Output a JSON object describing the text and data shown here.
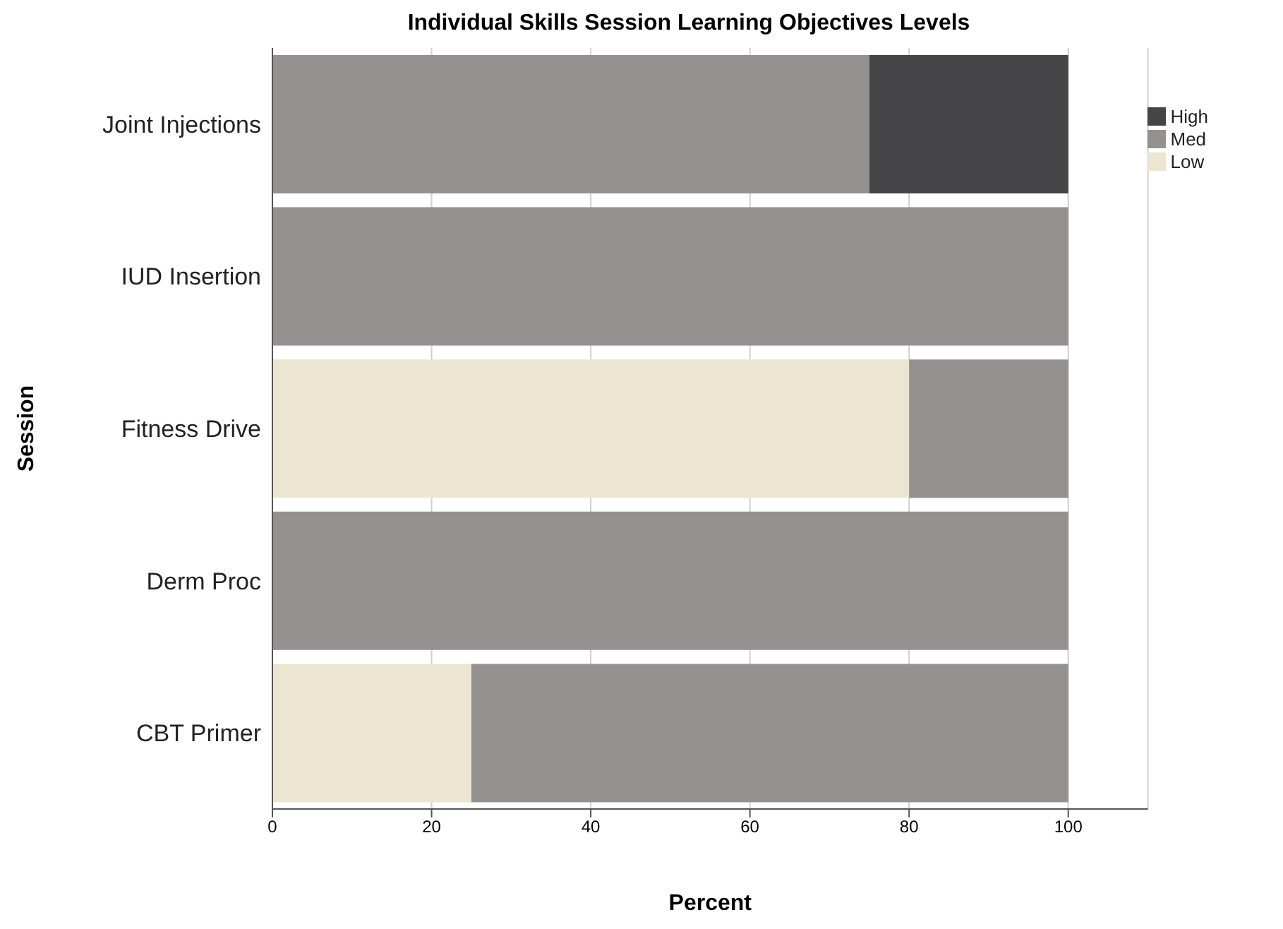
{
  "chart_data": {
    "type": "bar",
    "orientation": "horizontal",
    "stacked": true,
    "title": "Individual Skills Session Learning Objectives Levels",
    "xlabel": "Percent",
    "ylabel": "Session",
    "categories": [
      "Joint Injections",
      "IUD Insertion",
      "Fitness Drive",
      "Derm Proc",
      "CBT Primer"
    ],
    "series": [
      {
        "name": "Low",
        "color": "#ebe5d2",
        "values": [
          0,
          0,
          80,
          0,
          25
        ]
      },
      {
        "name": "Med",
        "color": "#959190",
        "values": [
          75,
          100,
          20,
          100,
          75
        ]
      },
      {
        "name": "High",
        "color": "#454547",
        "values": [
          25,
          0,
          0,
          0,
          0
        ]
      }
    ],
    "xlim": [
      0,
      110
    ],
    "xticks": [
      0,
      20,
      40,
      60,
      80,
      100
    ],
    "grid": "x",
    "legend": "top right"
  }
}
